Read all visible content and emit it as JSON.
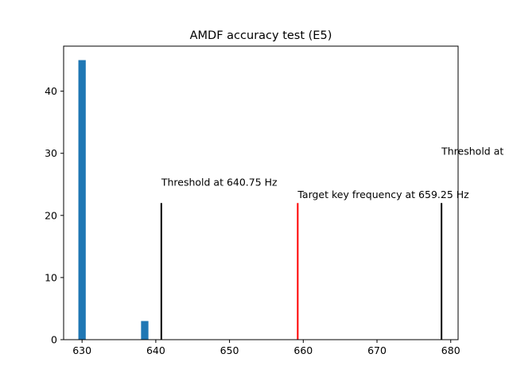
{
  "chart_data": {
    "type": "bar",
    "title": "AMDF accuracy test (E5)",
    "xlabel": "",
    "ylabel": "",
    "xlim": [
      627.5,
      681.0
    ],
    "ylim": [
      0,
      47.25
    ],
    "x_ticks": [
      630,
      640,
      650,
      660,
      670,
      680
    ],
    "y_ticks": [
      0,
      10,
      20,
      30,
      40
    ],
    "grid": false,
    "legend": "none",
    "histogram": {
      "color": "#1f77b4",
      "bins": [
        {
          "x0": 629.5,
          "x1": 630.5,
          "count": 45
        },
        {
          "x0": 638.0,
          "x1": 639.0,
          "count": 3
        }
      ]
    },
    "reference_lines": [
      {
        "x": 640.75,
        "y0": 0,
        "y1": 22,
        "color": "#000000",
        "label": "Threshold at 640.75 Hz",
        "label_y": 24.8
      },
      {
        "x": 659.25,
        "y0": 0,
        "y1": 22,
        "color": "#ff0000",
        "label": "Target key frequency at 659.25 Hz",
        "label_y": 22.8
      },
      {
        "x": 678.75,
        "y0": 0,
        "y1": 22,
        "color": "#000000",
        "label": "Threshold at",
        "label_y": 29.8
      }
    ]
  }
}
